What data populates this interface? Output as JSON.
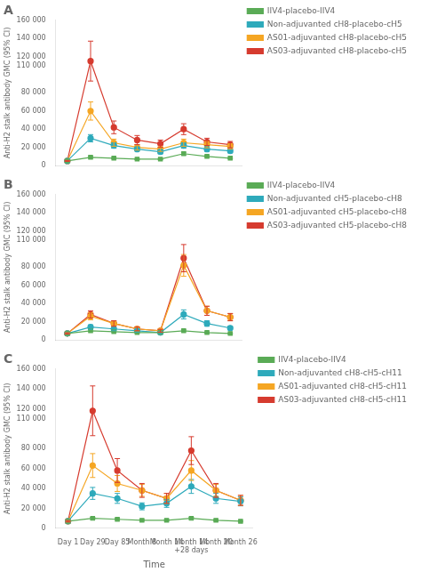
{
  "chart_data": [
    {
      "type": "line",
      "title": "A",
      "ylabel": "Anti-H2 stalk antibody GMC (95% CI)",
      "categories": [
        "Day 1",
        "Day 29",
        "Day 85",
        "Month 8",
        "Month 14",
        "Month 14\n+28 days",
        "Month 20",
        "Month 26"
      ],
      "tick_labels": "y",
      "grid": false,
      "legend": "right",
      "ylim": [
        0,
        160000
      ],
      "yticks": [
        0,
        {
          "value": 20000,
          "label": "20 000"
        },
        {
          "value": 40000,
          "label": "40 000"
        },
        {
          "value": 60000,
          "label": "60 000"
        },
        {
          "value": 80000,
          "label": "80 000"
        },
        {
          "value": 110000,
          "label": "110 000"
        },
        {
          "value": 120000,
          "label": "120 000"
        },
        {
          "value": 140000,
          "label": "140 000"
        },
        {
          "value": 160000,
          "label": "160 000"
        }
      ],
      "series": [
        {
          "name": "IIV4-placebo-IIV4",
          "color": "#5aab56",
          "marker": "square",
          "values": [
            5000,
            9000,
            8000,
            7000,
            7000,
            13000,
            10000,
            8000
          ],
          "yerr_lo": [
            500,
            1000,
            800,
            700,
            700,
            1500,
            1000,
            800
          ],
          "yerr_hi": [
            500,
            1000,
            800,
            700,
            700,
            1500,
            1000,
            800
          ]
        },
        {
          "name": "Non-adjuvanted cH8-placebo-cH5",
          "color": "#2eaabb",
          "marker": "circle",
          "values": [
            5000,
            30000,
            22000,
            18000,
            15000,
            22000,
            18000,
            16000
          ],
          "yerr_lo": [
            500,
            4000,
            3000,
            2000,
            2000,
            3000,
            2500,
            2000
          ],
          "yerr_hi": [
            500,
            4000,
            3000,
            2000,
            2000,
            3000,
            2500,
            2000
          ]
        },
        {
          "name": "AS01-adjuvanted cH8-placebo-cH5",
          "color": "#f5a623",
          "marker": "circle",
          "values": [
            5000,
            60000,
            25000,
            20000,
            18000,
            25000,
            23000,
            21000
          ],
          "yerr_lo": [
            500,
            10000,
            4000,
            3000,
            2500,
            4000,
            3500,
            3000
          ],
          "yerr_hi": [
            500,
            10000,
            4000,
            3000,
            2500,
            4000,
            3500,
            3000
          ]
        },
        {
          "name": "AS03-adjuvanted cH8-placebo-cH5",
          "color": "#d63b2f",
          "marker": "circle",
          "values": [
            5000,
            115000,
            42000,
            28000,
            24000,
            40000,
            26000,
            23000
          ],
          "yerr_lo": [
            500,
            22000,
            7000,
            5000,
            4000,
            6000,
            4000,
            3500
          ],
          "yerr_hi": [
            500,
            22000,
            7000,
            5000,
            4000,
            6000,
            4000,
            3500
          ]
        }
      ]
    },
    {
      "type": "line",
      "title": "B",
      "ylabel": "Anti-H2 stalk antibody GMC (95% CI)",
      "categories": [
        "Day 1",
        "Day 29",
        "Day 85",
        "Month 8",
        "Month 14",
        "Month 14\n+28 days",
        "Month 20",
        "Month 26"
      ],
      "tick_labels": "y",
      "grid": false,
      "legend": "right",
      "ylim": [
        0,
        160000
      ],
      "yticks": [
        0,
        {
          "value": 20000,
          "label": "20 000"
        },
        {
          "value": 40000,
          "label": "40 000"
        },
        {
          "value": 60000,
          "label": "60 000"
        },
        {
          "value": 80000,
          "label": "80 000"
        },
        {
          "value": 110000,
          "label": "110 000"
        },
        {
          "value": 120000,
          "label": "120 000"
        },
        {
          "value": 140000,
          "label": "140 000"
        },
        {
          "value": 160000,
          "label": "160 000"
        }
      ],
      "series": [
        {
          "name": "IIV4-placebo-IIV4",
          "color": "#5aab56",
          "marker": "square",
          "values": [
            7000,
            10000,
            9000,
            8000,
            8000,
            10000,
            8000,
            7000
          ],
          "yerr_lo": [
            700,
            1000,
            900,
            800,
            800,
            1000,
            800,
            700
          ],
          "yerr_hi": [
            700,
            1000,
            900,
            800,
            800,
            1000,
            800,
            700
          ]
        },
        {
          "name": "Non-adjuvanted cH5-placebo-cH8",
          "color": "#2eaabb",
          "marker": "circle",
          "values": [
            7000,
            14000,
            12000,
            10000,
            8000,
            28000,
            18000,
            13000
          ],
          "yerr_lo": [
            700,
            2500,
            2000,
            1500,
            1200,
            5000,
            3000,
            2000
          ],
          "yerr_hi": [
            700,
            2500,
            2000,
            1500,
            1200,
            5000,
            3000,
            2000
          ]
        },
        {
          "name": "AS01-adjuvanted cH5-placebo-cH8",
          "color": "#f5a623",
          "marker": "circle",
          "values": [
            7000,
            26000,
            18000,
            12000,
            10000,
            82000,
            32000,
            25000
          ],
          "yerr_lo": [
            700,
            4000,
            3000,
            2000,
            1500,
            12000,
            5000,
            4000
          ],
          "yerr_hi": [
            700,
            4000,
            3000,
            2000,
            1500,
            12000,
            5000,
            4000
          ]
        },
        {
          "name": "AS03-adjuvanted cH5-placebo-cH8",
          "color": "#d63b2f",
          "marker": "circle",
          "values": [
            7000,
            28000,
            18000,
            12000,
            10000,
            90000,
            32000,
            25000
          ],
          "yerr_lo": [
            700,
            4000,
            3000,
            2000,
            1500,
            15000,
            5000,
            4000
          ],
          "yerr_hi": [
            700,
            4000,
            3000,
            2000,
            1500,
            15000,
            5000,
            4000
          ]
        }
      ]
    },
    {
      "type": "line",
      "title": "C",
      "ylabel": "Anti-H2 stalk antibody GMC (95% CI)",
      "xlabel": "Time",
      "categories": [
        "Day 1",
        "Day 29",
        "Day 85",
        "Month 8",
        "Month 14",
        "Month 14\n+28 days",
        "Month 20",
        "Month 26"
      ],
      "grid": false,
      "legend": "right",
      "ylim": [
        0,
        160000
      ],
      "yticks": [
        0,
        {
          "value": 20000,
          "label": "20 000"
        },
        {
          "value": 40000,
          "label": "40 000"
        },
        {
          "value": 60000,
          "label": "60 000"
        },
        {
          "value": 80000,
          "label": "80 000"
        },
        {
          "value": 110000,
          "label": "110 000"
        },
        {
          "value": 120000,
          "label": "120 000"
        },
        {
          "value": 140000,
          "label": "140 000"
        },
        {
          "value": 160000,
          "label": "160 000"
        }
      ],
      "series": [
        {
          "name": "IIV4-placebo-IIV4",
          "color": "#5aab56",
          "marker": "square",
          "values": [
            7000,
            10000,
            9000,
            8000,
            8000,
            10000,
            8000,
            7000
          ],
          "yerr_lo": [
            700,
            1000,
            900,
            800,
            800,
            1000,
            800,
            700
          ],
          "yerr_hi": [
            700,
            1000,
            900,
            800,
            800,
            1000,
            800,
            700
          ]
        },
        {
          "name": "Non-adjuvanted cH8-cH5-cH11",
          "color": "#2eaabb",
          "marker": "circle",
          "values": [
            7000,
            35000,
            30000,
            22000,
            25000,
            42000,
            30000,
            27000
          ],
          "yerr_lo": [
            700,
            6000,
            5000,
            3500,
            4000,
            7000,
            5000,
            4500
          ],
          "yerr_hi": [
            700,
            6000,
            5000,
            3500,
            4000,
            7000,
            5000,
            4500
          ]
        },
        {
          "name": "AS01-adjuvanted cH8-cH5-cH11",
          "color": "#f5a623",
          "marker": "circle",
          "values": [
            7000,
            63000,
            45000,
            38000,
            30000,
            58000,
            38000,
            28000
          ],
          "yerr_lo": [
            700,
            12000,
            8000,
            6000,
            5000,
            10000,
            6000,
            5000
          ],
          "yerr_hi": [
            700,
            12000,
            8000,
            6000,
            5000,
            10000,
            6000,
            5000
          ]
        },
        {
          "name": "AS03-adjuvanted cH8-cH5-cH11",
          "color": "#d63b2f",
          "marker": "circle",
          "values": [
            7000,
            118000,
            58000,
            38000,
            30000,
            78000,
            38000,
            28000
          ],
          "yerr_lo": [
            700,
            25000,
            12000,
            7000,
            5000,
            14000,
            7000,
            5000
          ],
          "yerr_hi": [
            700,
            25000,
            12000,
            7000,
            5000,
            14000,
            7000,
            5000
          ]
        }
      ]
    }
  ]
}
